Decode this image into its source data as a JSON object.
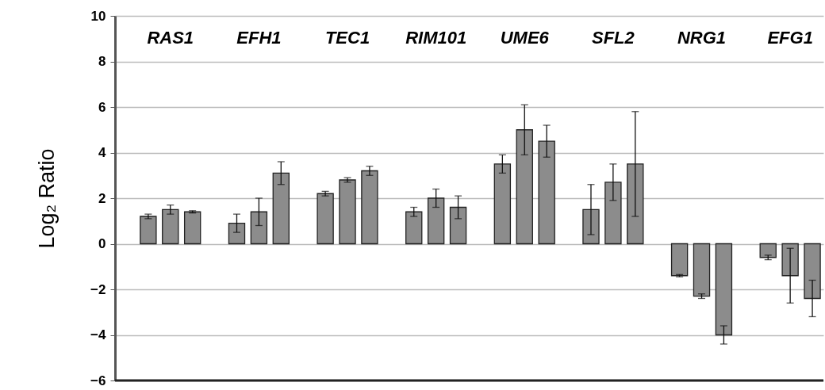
{
  "chart_data": {
    "type": "bar",
    "ylabel": "Log₂ Ratio",
    "categories": [
      null,
      null,
      null,
      null,
      null,
      null,
      null,
      null,
      null,
      null,
      null,
      null,
      null,
      null,
      null,
      null,
      null,
      null,
      null,
      null,
      null,
      null,
      null,
      null,
      null,
      null,
      null,
      null,
      null,
      null,
      null,
      null
    ],
    "values": [
      null,
      1.2,
      1.5,
      1.4,
      null,
      0.9,
      1.4,
      3.1,
      null,
      2.2,
      2.8,
      3.2,
      null,
      1.4,
      2.0,
      1.6,
      null,
      3.5,
      5.0,
      4.5,
      null,
      1.5,
      2.7,
      3.5,
      null,
      -1.4,
      -2.3,
      -4.0,
      null,
      -0.6,
      -1.4,
      -2.4
    ],
    "errors": [
      null,
      0.1,
      0.2,
      0.05,
      null,
      0.4,
      0.6,
      0.5,
      null,
      0.1,
      0.1,
      0.2,
      null,
      0.2,
      0.4,
      0.5,
      null,
      0.4,
      1.1,
      0.7,
      null,
      1.1,
      0.8,
      2.3,
      null,
      0.05,
      0.1,
      0.4,
      null,
      0.1,
      1.2,
      0.8
    ],
    "color": "#8c8c8c",
    "ylim": [
      -6,
      10
    ],
    "yticks": [
      -6,
      -4,
      -2,
      0,
      2,
      4,
      6,
      8,
      10
    ],
    "grid": "y",
    "annotations": [
      "RAS1",
      "EFH1",
      "TEC1",
      "RIM101",
      "UME6",
      "SFL2",
      "NRG1",
      "EFG1"
    ]
  }
}
